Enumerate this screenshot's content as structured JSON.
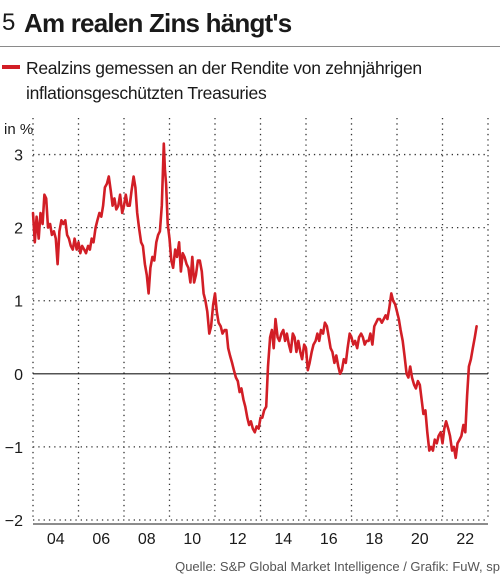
{
  "header": {
    "figure_number": "5",
    "title": "Am realen Zins hängt's"
  },
  "legend": {
    "label": "Realzins gemessen an der Rendite von zehnjährigen inflationsgeschützten Treasuries"
  },
  "source": "Quelle: S&P Global Market Intelligence / Grafik: FuW, sp",
  "colors": {
    "series": "#d21e26",
    "grid": "#333333",
    "text": "#1a1a1a"
  },
  "chart_data": {
    "type": "line",
    "ylabel": "in %",
    "ylim": [
      -2,
      3.5
    ],
    "xlim": [
      2003.0,
      2023.0
    ],
    "yticks": [
      3,
      2,
      1,
      0,
      -1,
      -2
    ],
    "ytick_labels": [
      "3",
      "2",
      "1",
      "0",
      "−1",
      "−2"
    ],
    "xtick_values": [
      2004,
      2006,
      2008,
      2010,
      2012,
      2014,
      2016,
      2018,
      2020,
      2022
    ],
    "xtick_labels": [
      "04",
      "06",
      "08",
      "10",
      "12",
      "14",
      "16",
      "18",
      "20",
      "22"
    ],
    "vgrid": true,
    "zero_line": true,
    "series": [
      {
        "name": "Realzins gemessen an der Rendite von zehnjährigen inflationsgeschützten Treasuries",
        "x": [
          2003.0,
          2003.08,
          2003.16,
          2003.25,
          2003.33,
          2003.42,
          2003.5,
          2003.58,
          2003.66,
          2003.75,
          2003.83,
          2003.92,
          2004.0,
          2004.08,
          2004.16,
          2004.25,
          2004.33,
          2004.42,
          2004.5,
          2004.58,
          2004.66,
          2004.75,
          2004.83,
          2004.92,
          2005.0,
          2005.08,
          2005.16,
          2005.25,
          2005.33,
          2005.42,
          2005.5,
          2005.58,
          2005.66,
          2005.75,
          2005.83,
          2005.92,
          2006.0,
          2006.08,
          2006.16,
          2006.25,
          2006.33,
          2006.42,
          2006.5,
          2006.58,
          2006.66,
          2006.75,
          2006.83,
          2006.92,
          2007.0,
          2007.08,
          2007.16,
          2007.25,
          2007.33,
          2007.42,
          2007.5,
          2007.58,
          2007.66,
          2007.75,
          2007.83,
          2007.92,
          2008.0,
          2008.08,
          2008.16,
          2008.25,
          2008.33,
          2008.42,
          2008.5,
          2008.58,
          2008.66,
          2008.75,
          2008.8,
          2008.85,
          2008.92,
          2009.0,
          2009.08,
          2009.16,
          2009.25,
          2009.33,
          2009.42,
          2009.5,
          2009.58,
          2009.66,
          2009.75,
          2009.83,
          2009.92,
          2010.0,
          2010.08,
          2010.16,
          2010.25,
          2010.33,
          2010.42,
          2010.5,
          2010.58,
          2010.66,
          2010.75,
          2010.83,
          2010.92,
          2011.0,
          2011.08,
          2011.16,
          2011.25,
          2011.33,
          2011.42,
          2011.5,
          2011.58,
          2011.66,
          2011.75,
          2011.83,
          2011.92,
          2012.0,
          2012.08,
          2012.16,
          2012.25,
          2012.33,
          2012.42,
          2012.5,
          2012.58,
          2012.66,
          2012.75,
          2012.83,
          2012.92,
          2013.0,
          2013.08,
          2013.16,
          2013.25,
          2013.33,
          2013.42,
          2013.5,
          2013.58,
          2013.66,
          2013.75,
          2013.83,
          2013.92,
          2014.0,
          2014.08,
          2014.16,
          2014.25,
          2014.33,
          2014.42,
          2014.5,
          2014.58,
          2014.66,
          2014.75,
          2014.83,
          2014.92,
          2015.0,
          2015.08,
          2015.16,
          2015.25,
          2015.33,
          2015.42,
          2015.5,
          2015.58,
          2015.66,
          2015.75,
          2015.83,
          2015.92,
          2016.0,
          2016.08,
          2016.16,
          2016.25,
          2016.33,
          2016.42,
          2016.5,
          2016.58,
          2016.66,
          2016.75,
          2016.83,
          2016.92,
          2017.0,
          2017.08,
          2017.16,
          2017.25,
          2017.33,
          2017.42,
          2017.5,
          2017.58,
          2017.66,
          2017.75,
          2017.83,
          2017.92,
          2018.0,
          2018.08,
          2018.16,
          2018.25,
          2018.33,
          2018.42,
          2018.5,
          2018.58,
          2018.66,
          2018.75,
          2018.83,
          2018.92,
          2019.0,
          2019.08,
          2019.16,
          2019.25,
          2019.33,
          2019.42,
          2019.5,
          2019.58,
          2019.66,
          2019.75,
          2019.83,
          2019.92,
          2020.0,
          2020.08,
          2020.16,
          2020.25,
          2020.33,
          2020.42,
          2020.5,
          2020.58,
          2020.66,
          2020.75,
          2020.83,
          2020.92,
          2021.0,
          2021.08,
          2021.16,
          2021.25,
          2021.33,
          2021.42,
          2021.5,
          2021.58,
          2021.66,
          2021.75,
          2021.83,
          2021.92,
          2022.0,
          2022.08,
          2022.16,
          2022.25,
          2022.33,
          2022.42,
          2022.5
        ],
        "y": [
          2.2,
          1.8,
          2.15,
          1.85,
          2.2,
          2.05,
          2.45,
          2.4,
          2.0,
          2.05,
          1.9,
          1.95,
          1.85,
          1.5,
          1.95,
          2.1,
          2.05,
          2.1,
          1.9,
          1.85,
          1.75,
          1.7,
          1.85,
          1.7,
          1.8,
          1.65,
          1.75,
          1.7,
          1.65,
          1.75,
          1.7,
          1.85,
          1.8,
          2.0,
          2.1,
          2.2,
          2.15,
          2.3,
          2.55,
          2.6,
          2.7,
          2.5,
          2.3,
          2.4,
          2.25,
          2.3,
          2.45,
          2.2,
          2.3,
          2.45,
          2.3,
          2.3,
          2.5,
          2.7,
          2.55,
          2.2,
          2.0,
          1.8,
          1.75,
          1.5,
          1.35,
          1.1,
          1.45,
          1.6,
          1.55,
          1.8,
          1.9,
          1.95,
          2.3,
          3.15,
          2.8,
          2.6,
          2.05,
          1.85,
          1.55,
          1.45,
          1.7,
          1.6,
          1.8,
          1.4,
          1.65,
          1.6,
          1.5,
          1.45,
          1.25,
          1.6,
          1.25,
          1.35,
          1.55,
          1.55,
          1.4,
          1.1,
          1.0,
          0.85,
          0.55,
          0.65,
          0.95,
          1.1,
          0.85,
          0.7,
          0.65,
          0.55,
          0.6,
          0.6,
          0.35,
          0.25,
          0.15,
          0.05,
          -0.05,
          -0.1,
          -0.25,
          -0.2,
          -0.35,
          -0.45,
          -0.6,
          -0.7,
          -0.65,
          -0.75,
          -0.8,
          -0.72,
          -0.75,
          -0.6,
          -0.6,
          -0.5,
          -0.45,
          0.1,
          0.5,
          0.6,
          0.35,
          0.75,
          0.5,
          0.45,
          0.55,
          0.6,
          0.45,
          0.55,
          0.4,
          0.3,
          0.55,
          0.5,
          0.3,
          0.45,
          0.3,
          0.2,
          0.4,
          0.35,
          0.05,
          0.15,
          0.3,
          0.4,
          0.45,
          0.55,
          0.45,
          0.6,
          0.55,
          0.7,
          0.65,
          0.5,
          0.35,
          0.3,
          0.15,
          0.25,
          0.1,
          0.0,
          0.05,
          0.2,
          0.15,
          0.35,
          0.55,
          0.5,
          0.4,
          0.45,
          0.35,
          0.5,
          0.55,
          0.5,
          0.4,
          0.45,
          0.45,
          0.55,
          0.4,
          0.65,
          0.7,
          0.75,
          0.75,
          0.7,
          0.75,
          0.8,
          0.75,
          0.9,
          1.1,
          1.0,
          0.95,
          0.85,
          0.75,
          0.6,
          0.45,
          0.25,
          0.0,
          -0.05,
          0.1,
          -0.05,
          -0.15,
          -0.2,
          -0.1,
          -0.15,
          -0.35,
          -0.55,
          -0.5,
          -0.8,
          -1.05,
          -1.0,
          -1.05,
          -0.9,
          -0.95,
          -0.85,
          -0.8,
          -0.95,
          -0.75,
          -0.65,
          -0.75,
          -0.85,
          -1.05,
          -1.0,
          -1.15,
          -0.95,
          -0.9,
          -0.85,
          -0.7,
          -0.8,
          -0.3,
          0.1,
          0.2,
          0.35,
          0.5,
          0.65
        ]
      }
    ]
  }
}
